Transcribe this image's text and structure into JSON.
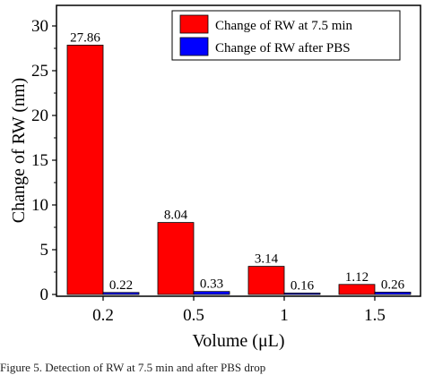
{
  "chart_data": {
    "type": "bar",
    "categories": [
      "0.2",
      "0.5",
      "1",
      "1.5"
    ],
    "series": [
      {
        "name": "Change of RW at 7.5 min",
        "color": "#ff0000",
        "values": [
          27.86,
          8.04,
          3.14,
          1.12
        ],
        "labels": [
          "27.86",
          "8.04",
          "3.14",
          "1.12"
        ]
      },
      {
        "name": "Change of RW after PBS",
        "color": "#0000ff",
        "values": [
          0.22,
          0.33,
          0.16,
          0.26
        ],
        "labels": [
          "0.22",
          "0.33",
          "0.16",
          "0.26"
        ]
      }
    ],
    "xlabel": "Volume (μL)",
    "ylabel": "Change of RW (nm)",
    "ylim": [
      0,
      32
    ],
    "yticks": [
      "0",
      "5",
      "10",
      "15",
      "20",
      "25",
      "30"
    ],
    "grid": false,
    "legend_position": "top-right"
  },
  "caption": "Figure 5. Detection of RW at 7.5 min and after PBS drop"
}
